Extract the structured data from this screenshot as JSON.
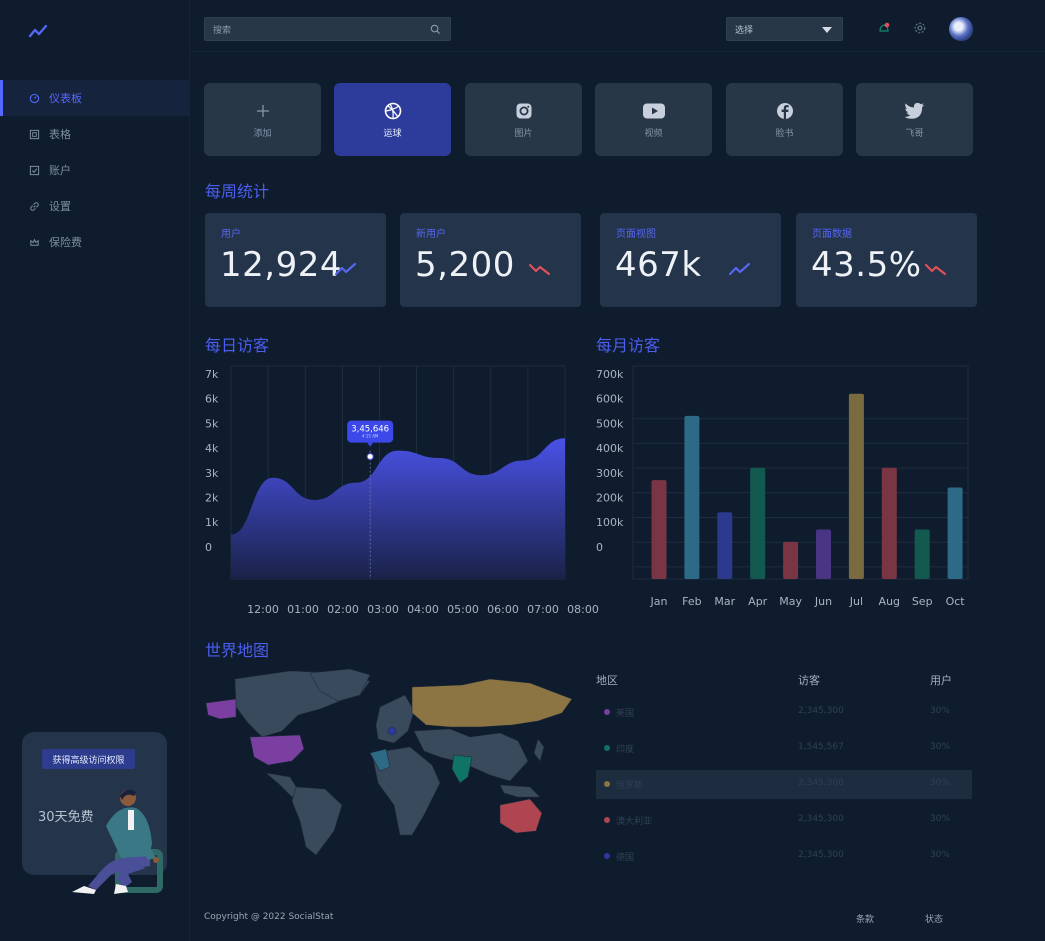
{
  "header": {
    "search_placeholder": "搜索",
    "select_label": "选择"
  },
  "sidebar": {
    "items": [
      {
        "label": "仪表板",
        "active": true
      },
      {
        "label": "表格"
      },
      {
        "label": "账户"
      },
      {
        "label": "设置"
      },
      {
        "label": "保险费"
      }
    ],
    "promo": {
      "button": "获得高级访问权限",
      "text": "30天免费"
    }
  },
  "tiles": [
    {
      "label": "添加",
      "icon": "plus-icon"
    },
    {
      "label": "运球",
      "icon": "dribbble-icon",
      "active": true
    },
    {
      "label": "图片",
      "icon": "instagram-icon"
    },
    {
      "label": "视频",
      "icon": "youtube-icon"
    },
    {
      "label": "脸书",
      "icon": "facebook-icon"
    },
    {
      "label": "飞哥",
      "icon": "twitter-icon"
    }
  ],
  "weekly": {
    "title": "每周统计",
    "stats": [
      {
        "label": "用户",
        "value": "12,924",
        "trend": "up"
      },
      {
        "label": "新用户",
        "value": "5,200",
        "trend": "down"
      },
      {
        "label": "页面视图",
        "value": "467k",
        "trend": "up"
      },
      {
        "label": "页面数据",
        "value": "43.5%",
        "trend": "down"
      }
    ]
  },
  "daily": {
    "title": "每日访客"
  },
  "monthly": {
    "title": "每月访客"
  },
  "colors": {
    "accent": "#4b5ef0",
    "up": "#5566f2",
    "down": "#e0505a",
    "purple": "#7a3fa0",
    "teal": "#0f7366",
    "gold": "#8c7443",
    "red": "#b04552",
    "blue": "#2b3a9c"
  },
  "chart_data": [
    {
      "type": "area",
      "x": [
        "12:00",
        "01:00",
        "02:00",
        "03:00",
        "04:00",
        "05:00",
        "06:00",
        "07:00",
        "08:00"
      ],
      "values": [
        0.5,
        2.8,
        1.9,
        2.6,
        3.9,
        3.6,
        2.9,
        3.5,
        4.4
      ],
      "y_ticks": [
        "7k",
        "6k",
        "5k",
        "4k",
        "3k",
        "2k",
        "1k",
        "0"
      ],
      "ylim": [
        0,
        7
      ],
      "tooltip": {
        "value": "3,45,646",
        "time": "4:15 AM"
      }
    },
    {
      "type": "bar",
      "categories": [
        "Jan",
        "Feb",
        "Mar",
        "Apr",
        "May",
        "Jun",
        "Jul",
        "Aug",
        "Sep",
        "Oct"
      ],
      "values": [
        250,
        510,
        120,
        300,
        0,
        50,
        600,
        300,
        50,
        220
      ],
      "colors": [
        "#7a3545",
        "#2c6a86",
        "#2b3a8c",
        "#125a50",
        "#7a3545",
        "#4a3584",
        "#7a6a40",
        "#7a3545",
        "#125a50",
        "#2c6a86"
      ],
      "y_ticks": [
        "700k",
        "600k",
        "500k",
        "400k",
        "300k",
        "200k",
        "100k",
        "0"
      ],
      "ylim": [
        0,
        700
      ]
    }
  ],
  "map": {
    "title": "世界地图",
    "columns": [
      "地区",
      "访客",
      "用户"
    ],
    "rows": [
      {
        "region": "美国",
        "visitors": "2,345,300",
        "users": "30%",
        "color": "#7a3fa0"
      },
      {
        "region": "印度",
        "visitors": "1,545,567",
        "users": "30%",
        "color": "#0f7366"
      },
      {
        "region": "俄罗斯",
        "visitors": "2,345,300",
        "users": "30%",
        "color": "#8c7443",
        "selected": true
      },
      {
        "region": "澳大利亚",
        "visitors": "2,345,300",
        "users": "30%",
        "color": "#b04552"
      },
      {
        "region": "德国",
        "visitors": "2,345,300",
        "users": "30%",
        "color": "#2b3a9c"
      }
    ]
  },
  "footer": {
    "copyright": "Copyright @ 2022 SocialStat",
    "terms": "条款",
    "status": "状态"
  }
}
